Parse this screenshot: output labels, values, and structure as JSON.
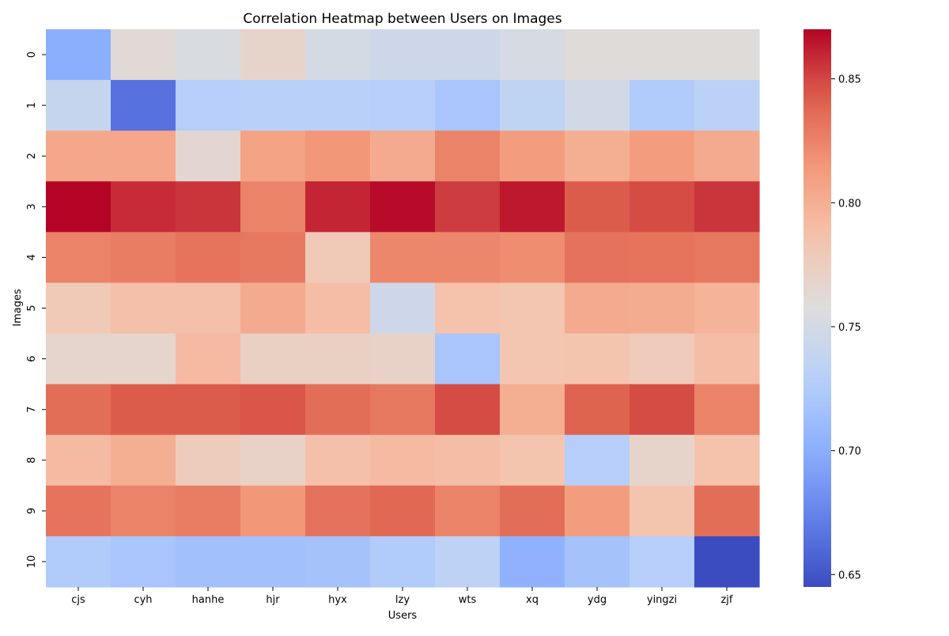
{
  "chart_data": {
    "type": "heatmap",
    "title": "Correlation Heatmap between Users on Images",
    "xlabel": "Users",
    "ylabel": "Images",
    "x_categories": [
      "cjs",
      "cyh",
      "hanhe",
      "hjr",
      "hyx",
      "lzy",
      "wts",
      "xq",
      "ydg",
      "yingzi",
      "zjf"
    ],
    "y_categories": [
      "0",
      "1",
      "2",
      "3",
      "4",
      "5",
      "6",
      "7",
      "8",
      "9",
      "10"
    ],
    "values": [
      [
        0.7,
        0.762,
        0.754,
        0.768,
        0.75,
        0.745,
        0.745,
        0.752,
        0.76,
        0.76,
        0.76
      ],
      [
        0.74,
        0.665,
        0.728,
        0.73,
        0.73,
        0.728,
        0.72,
        0.735,
        0.748,
        0.725,
        0.732
      ],
      [
        0.805,
        0.805,
        0.765,
        0.808,
        0.815,
        0.803,
        0.825,
        0.812,
        0.8,
        0.812,
        0.803
      ],
      [
        0.87,
        0.858,
        0.855,
        0.825,
        0.86,
        0.868,
        0.853,
        0.864,
        0.843,
        0.848,
        0.855
      ],
      [
        0.825,
        0.828,
        0.832,
        0.83,
        0.78,
        0.823,
        0.823,
        0.82,
        0.833,
        0.832,
        0.83
      ],
      [
        0.78,
        0.788,
        0.788,
        0.803,
        0.79,
        0.745,
        0.787,
        0.783,
        0.803,
        0.802,
        0.797
      ],
      [
        0.767,
        0.767,
        0.792,
        0.773,
        0.773,
        0.77,
        0.72,
        0.783,
        0.785,
        0.778,
        0.79
      ],
      [
        0.835,
        0.843,
        0.843,
        0.845,
        0.835,
        0.83,
        0.848,
        0.8,
        0.84,
        0.848,
        0.825
      ],
      [
        0.792,
        0.8,
        0.777,
        0.77,
        0.788,
        0.792,
        0.79,
        0.785,
        0.728,
        0.768,
        0.787
      ],
      [
        0.832,
        0.825,
        0.828,
        0.815,
        0.833,
        0.838,
        0.825,
        0.835,
        0.812,
        0.785,
        0.835
      ],
      [
        0.725,
        0.72,
        0.715,
        0.715,
        0.717,
        0.725,
        0.733,
        0.703,
        0.717,
        0.728,
        0.645
      ]
    ],
    "vmin": 0.645,
    "vmax": 0.87,
    "colormap": "coolwarm",
    "colorbar_ticks": [
      0.65,
      0.7,
      0.75,
      0.8,
      0.85
    ],
    "colorbar_tick_labels": [
      "0.65",
      "0.70",
      "0.75",
      "0.80",
      "0.85"
    ],
    "grid": false
  }
}
